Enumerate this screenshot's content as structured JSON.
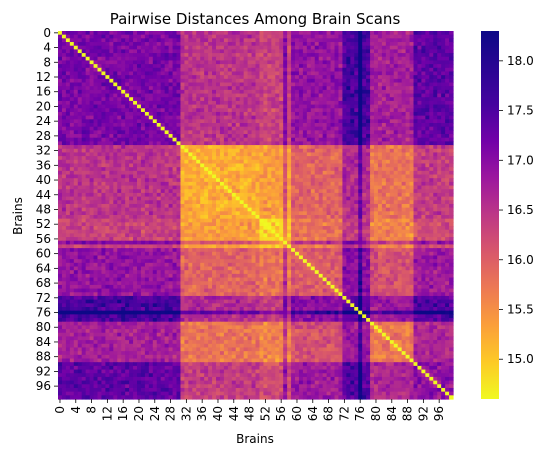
{
  "chart_data": {
    "type": "heatmap",
    "title": "Pairwise Distances Among Brain Scans",
    "xlabel": "Brains",
    "ylabel": "Brains",
    "n": 100,
    "tick_labels": [
      "0",
      "4",
      "8",
      "12",
      "16",
      "20",
      "24",
      "28",
      "32",
      "36",
      "40",
      "44",
      "48",
      "52",
      "56",
      "60",
      "64",
      "68",
      "72",
      "76",
      "80",
      "84",
      "88",
      "92",
      "96"
    ],
    "colorbar": {
      "min": 14.6,
      "max": 18.3,
      "tick_labels": [
        "15.0",
        "15.5",
        "16.0",
        "16.5",
        "17.0",
        "17.5",
        "18.0"
      ],
      "colormap": "plasma (reversed)"
    },
    "diagonal_value": 14.6,
    "cluster_groups": [
      {
        "range": [
          0,
          30
        ],
        "level": 17.4
      },
      {
        "range": [
          31,
          50
        ],
        "level": 15.3
      },
      {
        "range": [
          51,
          58
        ],
        "level": 14.9
      },
      {
        "range": [
          59,
          71
        ],
        "level": 16.2
      },
      {
        "range": [
          72,
          78
        ],
        "level": 17.6
      },
      {
        "range": [
          79,
          89
        ],
        "level": 15.8
      },
      {
        "range": [
          90,
          99
        ],
        "level": 17.2
      }
    ],
    "colors": {
      "low": "#f0f921",
      "high": "#0d0887"
    }
  }
}
